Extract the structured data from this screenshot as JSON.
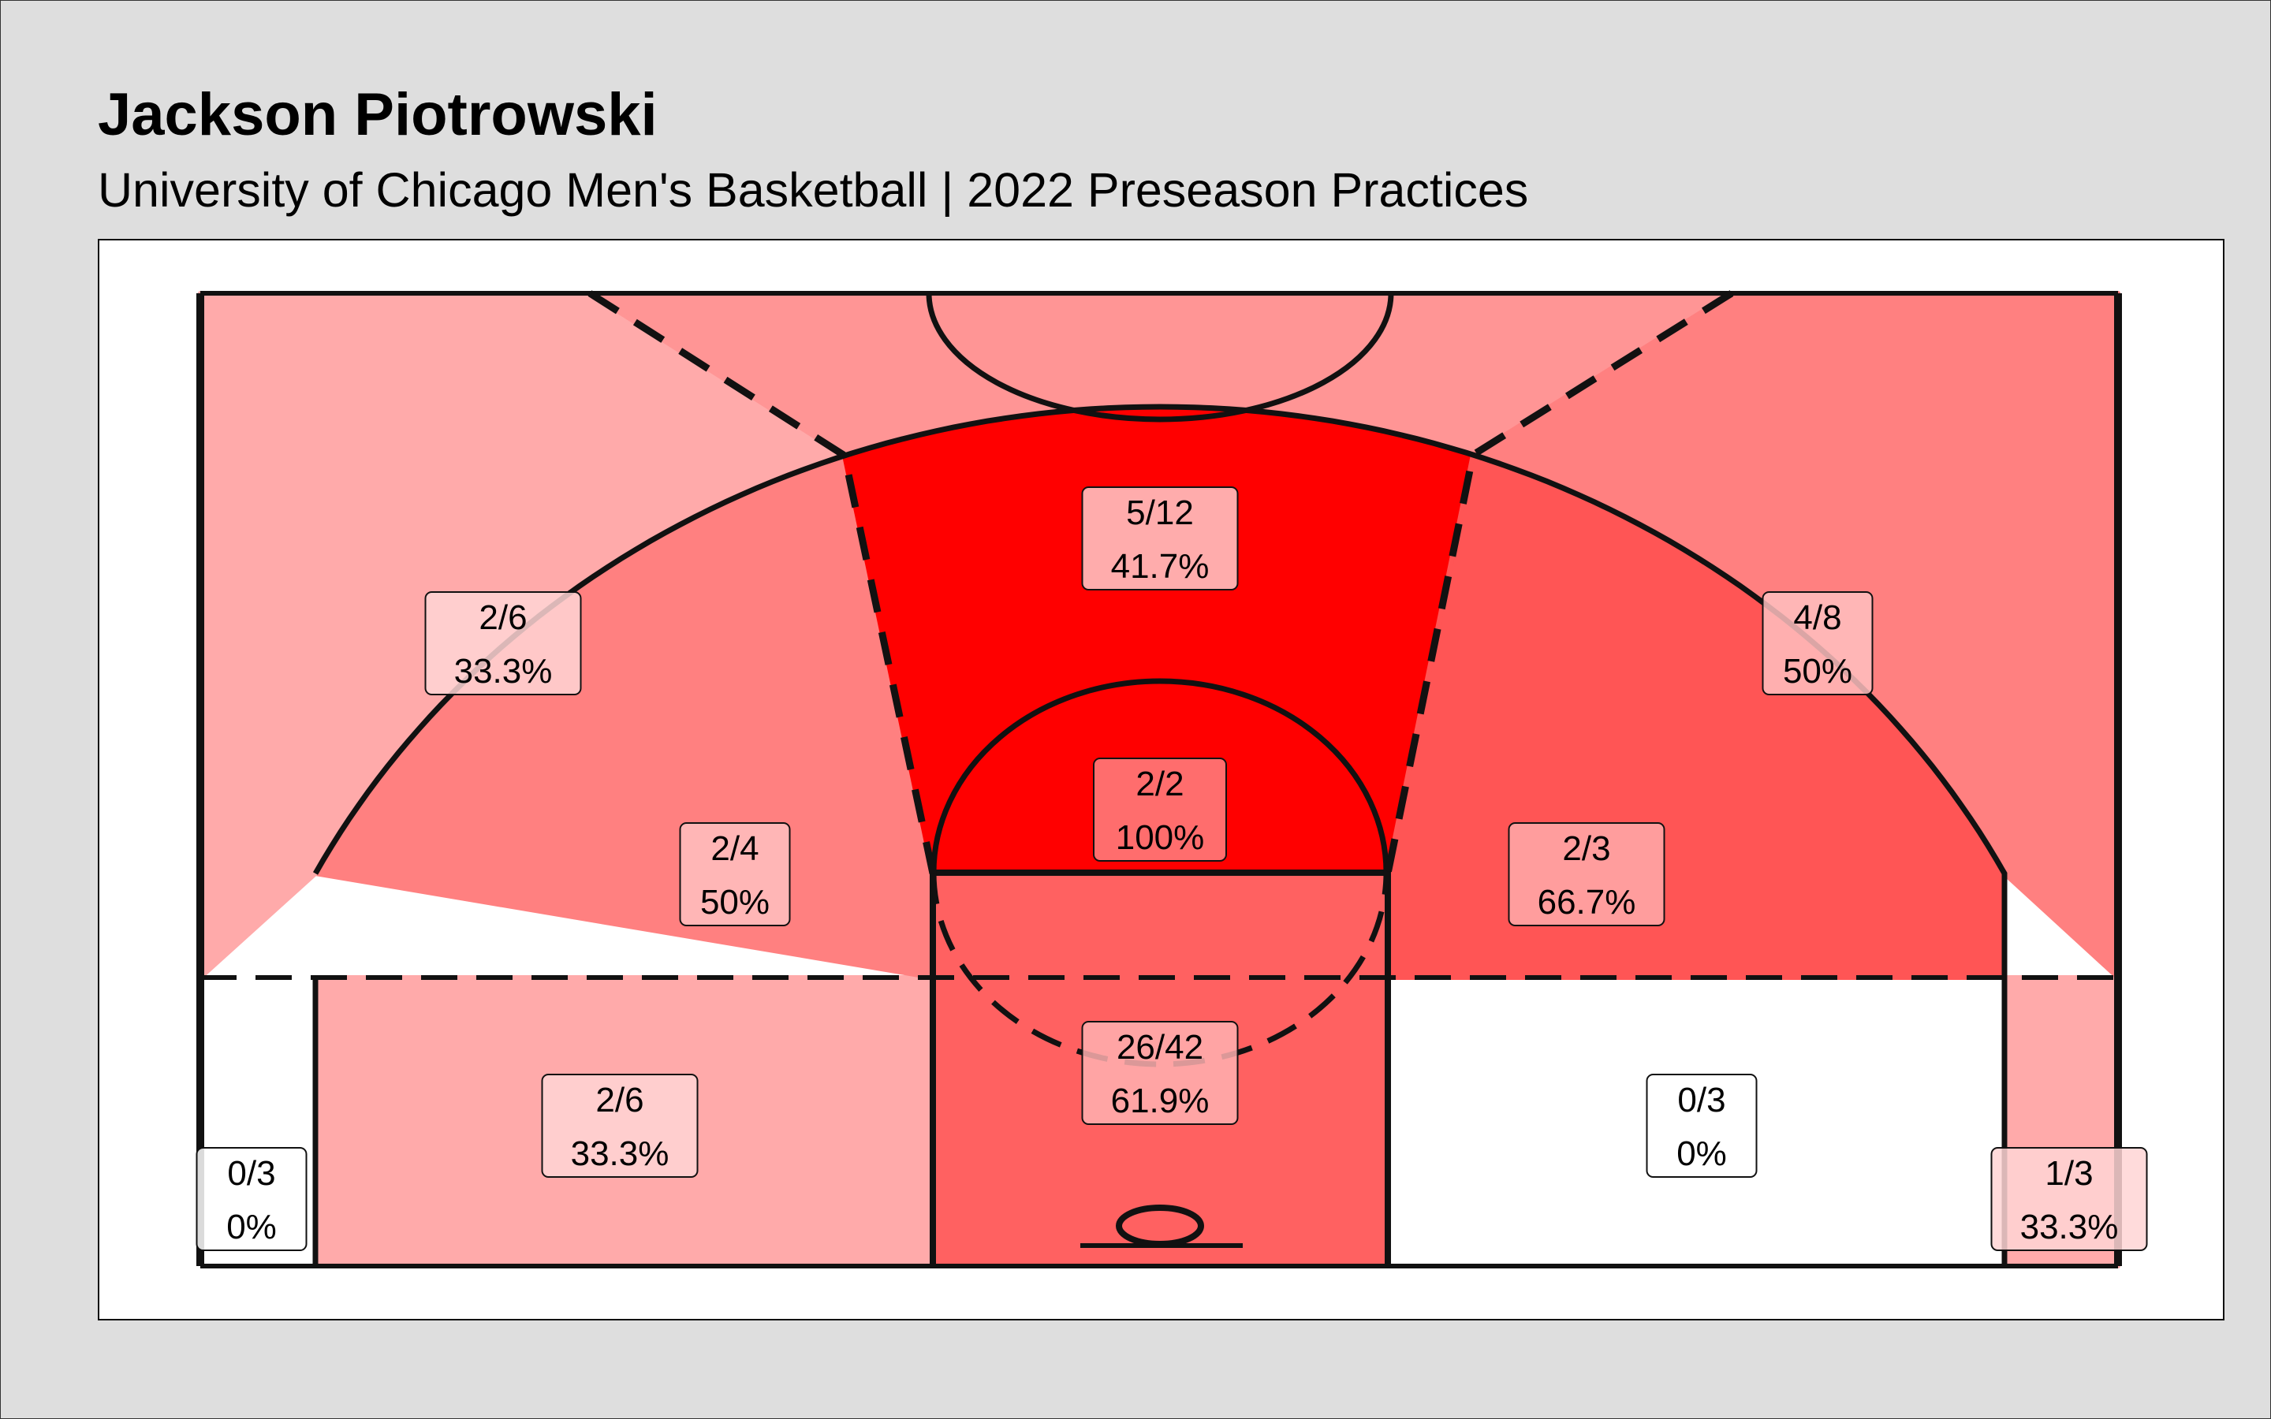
{
  "header": {
    "title": "Jackson Piotrowski",
    "subtitle": "University of Chicago Men's Basketball | 2022 Preseason Practices"
  },
  "colors": {
    "background": "#dedede",
    "panel": "#ffffff",
    "scale_low": "#ffffff",
    "scale_high": "#ff0000",
    "lines": "#111111"
  },
  "chart_data": {
    "type": "heatmap",
    "title": "Jackson Piotrowski",
    "subtitle": "University of Chicago Men's Basketball | 2022 Preseason Practices",
    "fill_scale": "field goal percentage, white (0%) to red (100%)",
    "zones": [
      {
        "name": "left-corner-three",
        "made": 0,
        "attempted": 3,
        "label": "0/3",
        "pct_label": "0%",
        "pct": 0.0
      },
      {
        "name": "left-baseline-midrange",
        "made": 2,
        "attempted": 6,
        "label": "2/6",
        "pct_label": "33.3%",
        "pct": 33.3
      },
      {
        "name": "paint",
        "made": 26,
        "attempted": 42,
        "label": "26/42",
        "pct_label": "61.9%",
        "pct": 61.9
      },
      {
        "name": "right-baseline-midrange",
        "made": 0,
        "attempted": 3,
        "label": "0/3",
        "pct_label": "0%",
        "pct": 0.0
      },
      {
        "name": "right-corner-three",
        "made": 1,
        "attempted": 3,
        "label": "1/3",
        "pct_label": "33.3%",
        "pct": 33.3
      },
      {
        "name": "left-wing-midrange",
        "made": 2,
        "attempted": 4,
        "label": "2/4",
        "pct_label": "50%",
        "pct": 50.0
      },
      {
        "name": "top-of-key-midrange",
        "made": 2,
        "attempted": 2,
        "label": "2/2",
        "pct_label": "100%",
        "pct": 100.0
      },
      {
        "name": "right-wing-midrange",
        "made": 2,
        "attempted": 3,
        "label": "2/3",
        "pct_label": "66.7%",
        "pct": 66.7
      },
      {
        "name": "left-wing-three",
        "made": 2,
        "attempted": 6,
        "label": "2/6",
        "pct_label": "33.3%",
        "pct": 33.3
      },
      {
        "name": "top-three",
        "made": 5,
        "attempted": 12,
        "label": "5/12",
        "pct_label": "41.7%",
        "pct": 41.7
      },
      {
        "name": "right-wing-three",
        "made": 4,
        "attempted": 8,
        "label": "4/8",
        "pct_label": "50%",
        "pct": 50.0
      }
    ]
  }
}
